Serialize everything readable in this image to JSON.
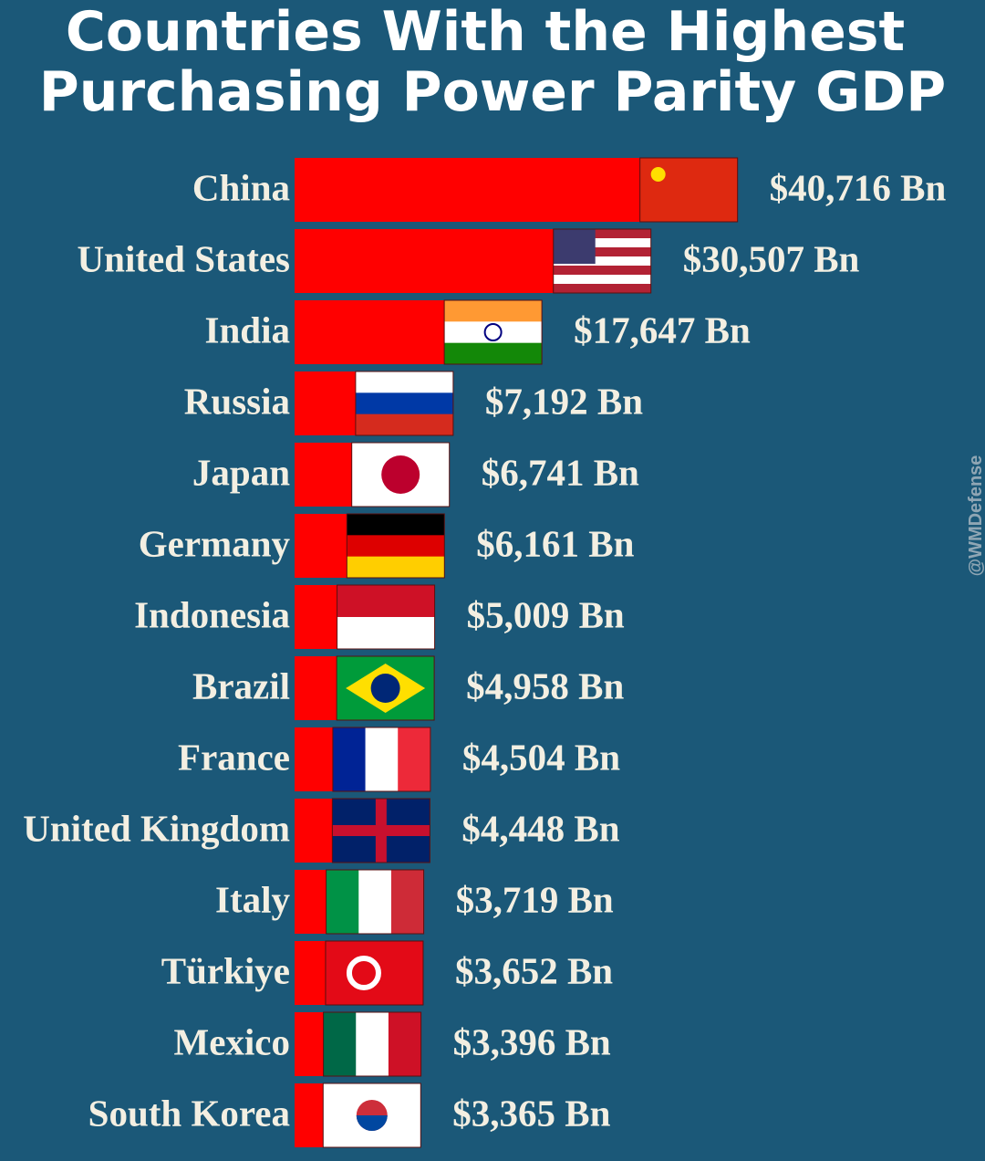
{
  "chart_data": {
    "type": "bar",
    "orientation": "horizontal",
    "title": [
      "Countries With the Highest",
      "Purchasing Power Parity GDP"
    ],
    "categories": [
      "China",
      "United States",
      "India",
      "Russia",
      "Japan",
      "Germany",
      "Indonesia",
      "Brazil",
      "France",
      "United Kingdom",
      "Italy",
      "Türkiye",
      "Mexico",
      "South Korea"
    ],
    "values": [
      40716,
      30507,
      17647,
      7192,
      6741,
      6161,
      5009,
      4958,
      4504,
      4448,
      3719,
      3652,
      3396,
      3365
    ],
    "value_labels": [
      "$40,716 Bn",
      "$30,507 Bn",
      "$17,647 Bn",
      "$7,192 Bn",
      "$6,741 Bn",
      "$6,161 Bn",
      "$5,009 Bn",
      "$4,958 Bn",
      "$4,504 Bn",
      "$4,448 Bn",
      "$3,719 Bn",
      "$3,652 Bn",
      "$3,396 Bn",
      "$3,365 Bn"
    ],
    "color": "#ff0000",
    "watermark": "@WMDefense"
  }
}
